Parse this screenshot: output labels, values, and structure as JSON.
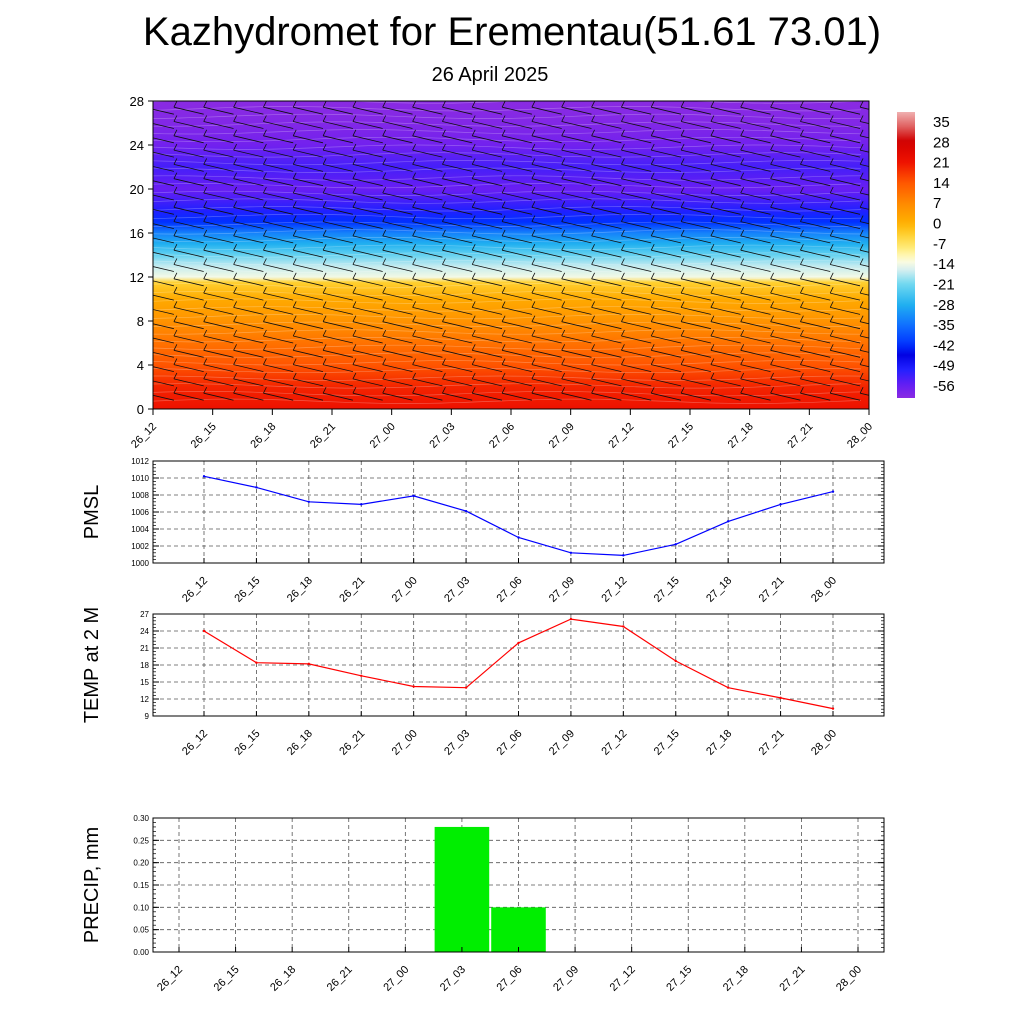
{
  "title": "Kazhydromet for Erementau(51.61 73.01)",
  "subtitle": "26 April 2025",
  "time_labels": [
    "26_12",
    "26_15",
    "26_18",
    "26_21",
    "27_00",
    "27_03",
    "27_06",
    "27_09",
    "27_12",
    "27_15",
    "27_18",
    "27_21",
    "28_00"
  ],
  "colors": {
    "pmsl_line": "#0000ff",
    "temp_line": "#ff0000",
    "precip_bar": "#00ee00"
  },
  "chart_data": [
    {
      "type": "heatmap",
      "title": "",
      "xlabel": "",
      "ylabel": "",
      "x": [
        "26_12",
        "26_15",
        "26_18",
        "26_21",
        "27_00",
        "27_03",
        "27_06",
        "27_09",
        "27_12",
        "27_15",
        "27_18",
        "27_21",
        "28_00"
      ],
      "yticks": [
        0,
        4,
        8,
        12,
        16,
        20,
        24,
        28
      ],
      "ylim": [
        0,
        28
      ],
      "colorbar": {
        "labels": [
          "35",
          "28",
          "21",
          "14",
          "7",
          "0",
          "-7",
          "-14",
          "-21",
          "-28",
          "-35",
          "-42",
          "-49",
          "-56"
        ],
        "range": [
          -60,
          38
        ]
      },
      "profile_temperature": [
        {
          "h": 0,
          "t": 21
        },
        {
          "h": 2,
          "t": 19
        },
        {
          "h": 4,
          "t": 14
        },
        {
          "h": 6,
          "t": 10
        },
        {
          "h": 8,
          "t": 5
        },
        {
          "h": 10,
          "t": 1
        },
        {
          "h": 11.5,
          "t": -4
        },
        {
          "h": 12,
          "t": -14
        },
        {
          "h": 13,
          "t": -17
        },
        {
          "h": 14,
          "t": -22
        },
        {
          "h": 15,
          "t": -28
        },
        {
          "h": 16,
          "t": -33
        },
        {
          "h": 17,
          "t": -42
        },
        {
          "h": 18,
          "t": -50
        },
        {
          "h": 20,
          "t": -56
        },
        {
          "h": 22,
          "t": -53
        },
        {
          "h": 24,
          "t": -57
        },
        {
          "h": 26,
          "t": -59
        },
        {
          "h": 28,
          "t": -60
        }
      ],
      "wind_barbs": "yes",
      "grid": false
    },
    {
      "type": "line",
      "ylabel": "PMSL",
      "series": [
        {
          "values": [
            1010.2,
            1008.9,
            1007.2,
            1006.9,
            1007.9,
            1006.1,
            1003.0,
            1001.2,
            1000.9,
            1002.2,
            1004.9,
            1006.9,
            1008.4
          ]
        }
      ],
      "ylim": [
        1000,
        1012
      ],
      "yticks": [
        1000,
        1002,
        1004,
        1006,
        1008,
        1010,
        1012
      ],
      "grid": true
    },
    {
      "type": "line",
      "ylabel": "TEMP at 2 M",
      "series": [
        {
          "values": [
            24.0,
            18.4,
            18.2,
            16.1,
            14.2,
            14.0,
            21.9,
            26.1,
            24.8,
            18.7,
            14.0,
            12.2,
            10.3
          ]
        }
      ],
      "ylim": [
        9,
        27
      ],
      "yticks": [
        9,
        12,
        15,
        18,
        21,
        24,
        27
      ],
      "grid": true
    },
    {
      "type": "bar",
      "ylabel": "PRECIP, mm",
      "categories": [
        "26_12",
        "26_15",
        "26_18",
        "26_21",
        "27_00",
        "27_03",
        "27_06",
        "27_09",
        "27_12",
        "27_15",
        "27_18",
        "27_21",
        "28_00"
      ],
      "values": [
        0,
        0,
        0,
        0,
        0,
        0.28,
        0.1,
        0,
        0,
        0,
        0,
        0,
        0
      ],
      "ylim": [
        0,
        0.3
      ],
      "yticks": [
        "0.00",
        "0.05",
        "0.10",
        "0.15",
        "0.20",
        "0.25",
        "0.30"
      ],
      "grid": true
    }
  ]
}
